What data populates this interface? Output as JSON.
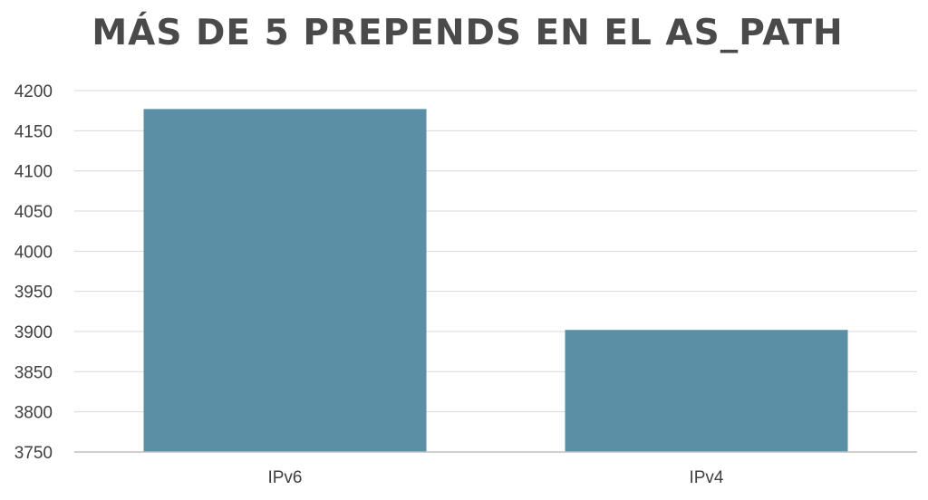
{
  "chart_data": {
    "type": "bar",
    "title": "MÁS DE 5 PREPENDS EN EL AS_PATH",
    "categories": [
      "IPv6",
      "IPv4"
    ],
    "values": [
      4177,
      3902
    ],
    "ylim": [
      3750,
      4200
    ],
    "yticks": [
      3750,
      3800,
      3850,
      3900,
      3950,
      4000,
      4050,
      4100,
      4150,
      4200
    ],
    "xlabel": "",
    "ylabel": "",
    "grid": true,
    "legend": "none",
    "bar_color": "#5b8fa6",
    "grid_color": "#d9d9d9",
    "axis_color": "#bfbfbf"
  }
}
